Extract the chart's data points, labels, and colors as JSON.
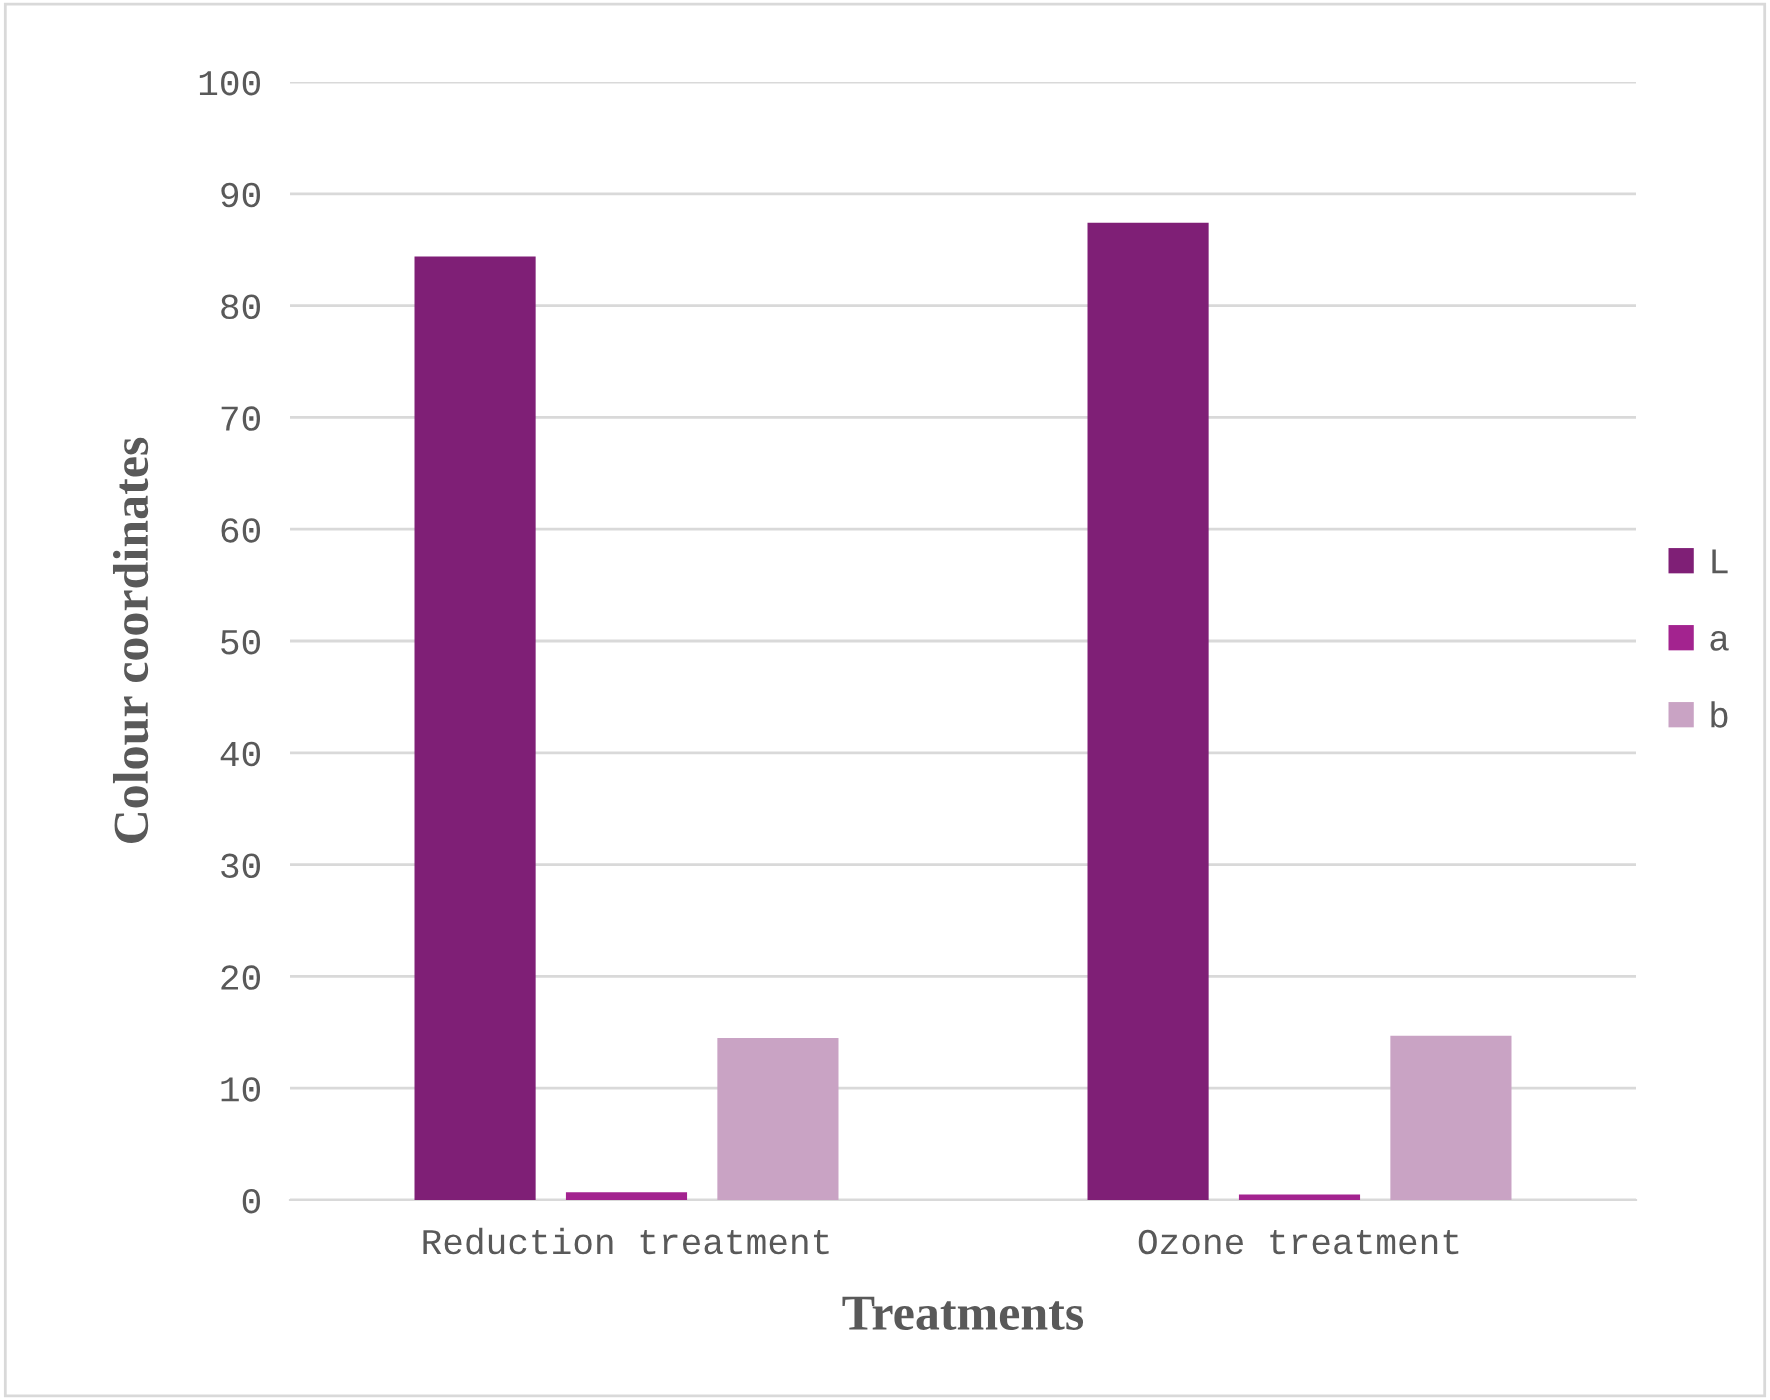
{
  "chart_data": {
    "type": "bar",
    "xlabel": "Treatments",
    "ylabel": "Colour coordinates",
    "categories": [
      "Reduction treatment",
      "Ozone treatment"
    ],
    "series": [
      {
        "name": "L",
        "color": "#7f1f76",
        "values": [
          84.4,
          87.4
        ]
      },
      {
        "name": "a",
        "color": "#a3238f",
        "values": [
          0.7,
          0.5
        ]
      },
      {
        "name": "b",
        "color": "#c9a3c4",
        "values": [
          14.5,
          14.7
        ]
      }
    ],
    "ylim": [
      0,
      100
    ],
    "yticks": [
      0,
      10,
      20,
      30,
      40,
      50,
      60,
      70,
      80,
      90,
      100
    ],
    "grid": "y",
    "legend": "right"
  }
}
